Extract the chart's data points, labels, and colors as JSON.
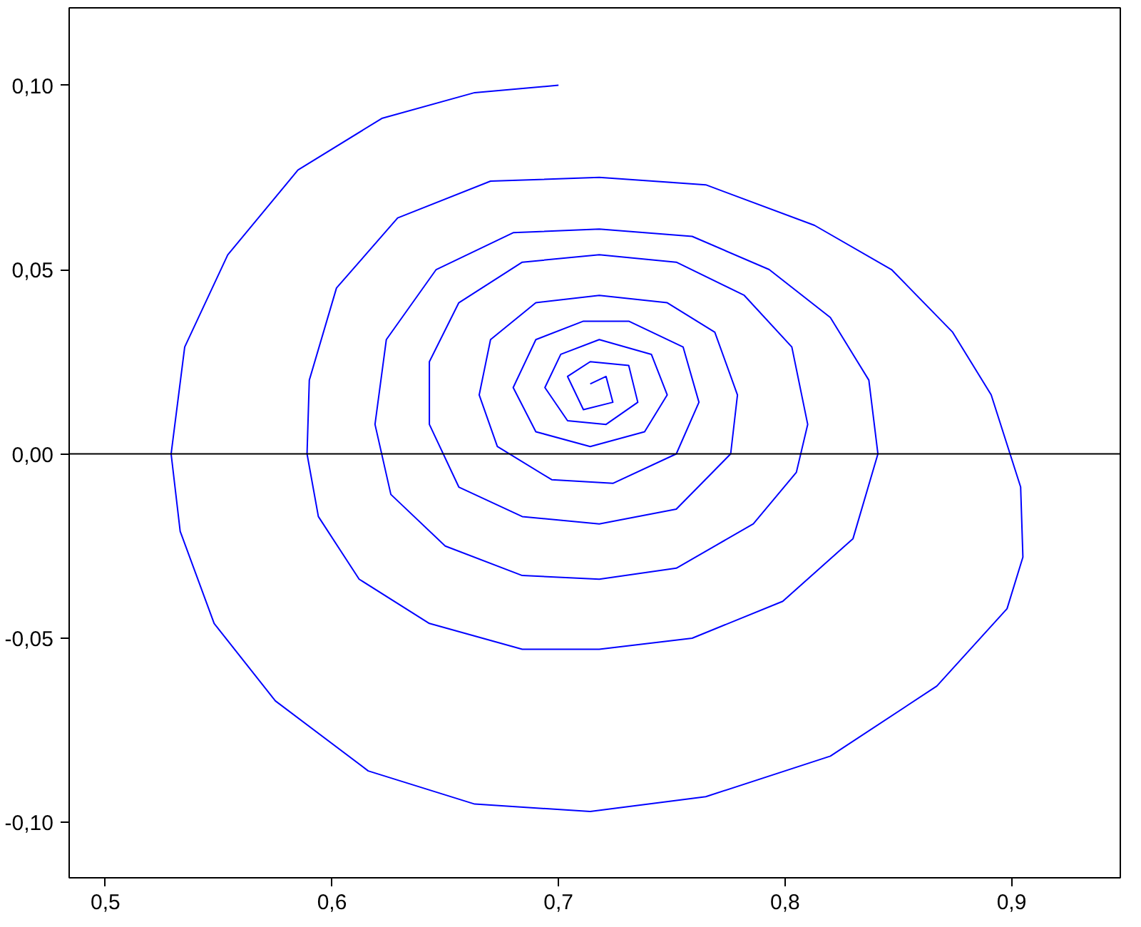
{
  "chart_data": {
    "type": "line",
    "xlim": [
      0.484,
      0.948
    ],
    "ylim": [
      -0.115,
      0.121
    ],
    "xticks": [
      {
        "value": 0.5,
        "label": "0,5"
      },
      {
        "value": 0.6,
        "label": "0,6"
      },
      {
        "value": 0.7,
        "label": "0,7"
      },
      {
        "value": 0.8,
        "label": "0,8"
      },
      {
        "value": 0.9,
        "label": "0,9"
      }
    ],
    "yticks": [
      {
        "value": -0.1,
        "label": "-0,10"
      },
      {
        "value": -0.05,
        "label": "-0,05"
      },
      {
        "value": 0,
        "label": "0,00"
      },
      {
        "value": 0.05,
        "label": "0,05"
      },
      {
        "value": 0.1,
        "label": "0,10"
      }
    ],
    "grid": false,
    "line_style": "solid",
    "ref_lines": [
      {
        "axis": "y",
        "value": 0,
        "color": "#000000"
      }
    ],
    "series": [
      {
        "color": "#0000ff",
        "x": [
          0.7,
          0.663,
          0.622,
          0.585,
          0.554,
          0.535,
          0.529,
          0.533,
          0.548,
          0.575,
          0.616,
          0.663,
          0.714,
          0.765,
          0.82,
          0.867,
          0.898,
          0.905,
          0.904,
          0.891,
          0.874,
          0.847,
          0.813,
          0.765,
          0.718,
          0.67,
          0.629,
          0.602,
          0.59,
          0.589,
          0.594,
          0.612,
          0.643,
          0.684,
          0.718,
          0.759,
          0.799,
          0.83,
          0.841,
          0.837,
          0.82,
          0.793,
          0.759,
          0.718,
          0.68,
          0.646,
          0.624,
          0.619,
          0.626,
          0.65,
          0.684,
          0.718,
          0.752,
          0.786,
          0.805,
          0.81,
          0.803,
          0.782,
          0.752,
          0.718,
          0.684,
          0.656,
          0.643,
          0.643,
          0.656,
          0.684,
          0.718,
          0.752,
          0.776,
          0.779,
          0.769,
          0.748,
          0.718,
          0.69,
          0.67,
          0.665,
          0.673,
          0.697,
          0.724,
          0.752,
          0.762,
          0.755,
          0.731,
          0.711,
          0.69,
          0.68,
          0.69,
          0.714,
          0.738,
          0.748,
          0.741,
          0.718,
          0.701,
          0.694,
          0.704,
          0.721,
          0.735,
          0.731,
          0.714,
          0.704,
          0.711,
          0.724,
          0.721,
          0.714
        ],
        "values": [
          0.1,
          0.098,
          0.091,
          0.077,
          0.054,
          0.029,
          0.0,
          -0.021,
          -0.046,
          -0.067,
          -0.086,
          -0.095,
          -0.097,
          -0.093,
          -0.082,
          -0.063,
          -0.042,
          -0.028,
          -0.009,
          0.016,
          0.033,
          0.05,
          0.062,
          0.073,
          0.075,
          0.074,
          0.064,
          0.045,
          0.02,
          0.0,
          -0.017,
          -0.034,
          -0.046,
          -0.053,
          -0.053,
          -0.05,
          -0.04,
          -0.023,
          0.0,
          0.02,
          0.037,
          0.05,
          0.059,
          0.061,
          0.06,
          0.05,
          0.031,
          0.008,
          -0.011,
          -0.025,
          -0.033,
          -0.034,
          -0.031,
          -0.019,
          -0.005,
          0.008,
          0.029,
          0.043,
          0.052,
          0.054,
          0.052,
          0.041,
          0.025,
          0.008,
          -0.009,
          -0.017,
          -0.019,
          -0.015,
          0.0,
          0.016,
          0.033,
          0.041,
          0.043,
          0.041,
          0.031,
          0.016,
          0.002,
          -0.007,
          -0.008,
          0.0,
          0.014,
          0.029,
          0.036,
          0.036,
          0.031,
          0.018,
          0.006,
          0.002,
          0.006,
          0.016,
          0.027,
          0.031,
          0.027,
          0.018,
          0.009,
          0.008,
          0.014,
          0.024,
          0.025,
          0.021,
          0.012,
          0.014,
          0.021,
          0.019
        ]
      }
    ]
  }
}
